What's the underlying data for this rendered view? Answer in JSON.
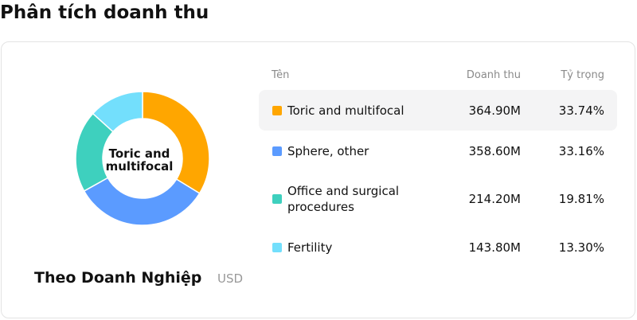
{
  "page_title": "Phân tích doanh thu",
  "chart_data": {
    "type": "pie",
    "subtitle": "Theo Doanh Nghiệp",
    "unit": "USD",
    "center_label": "Toric and multifocal",
    "colors": [
      "#FFA600",
      "#5B9BFF",
      "#3ED0BE",
      "#73DFFC"
    ],
    "highlighted": "Toric and multifocal",
    "columns": [
      "Tên",
      "Doanh thu",
      "Tỷ trọng"
    ],
    "rows": [
      {
        "name": "Toric and multifocal",
        "revenue": "364.90M",
        "share": "33.74%",
        "value": 364.9,
        "percent": 33.74
      },
      {
        "name": "Sphere, other",
        "revenue": "358.60M",
        "share": "33.16%",
        "value": 358.6,
        "percent": 33.16
      },
      {
        "name": "Office and surgical procedures",
        "revenue": "214.20M",
        "share": "19.81%",
        "value": 214.2,
        "percent": 19.81
      },
      {
        "name": "Fertility",
        "revenue": "143.80M",
        "share": "13.30%",
        "value": 143.8,
        "percent": 13.3
      }
    ]
  }
}
